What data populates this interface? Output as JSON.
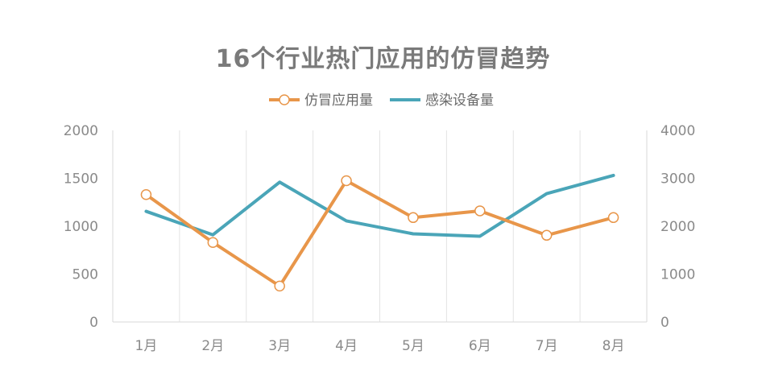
{
  "chart_data": {
    "type": "line",
    "title": "16个行业热门应用的仿冒趋势",
    "categories": [
      "1月",
      "2月",
      "3月",
      "4月",
      "5月",
      "6月",
      "7月",
      "8月"
    ],
    "series": [
      {
        "name": "仿冒应用量",
        "axis": "left",
        "color": "#E8964A",
        "marker": "circle",
        "values": [
          1330,
          830,
          375,
          1475,
          1090,
          1160,
          905,
          1090
        ]
      },
      {
        "name": "感染设备量",
        "axis": "right",
        "color": "#4AA5B8",
        "marker": "none",
        "values": [
          2310,
          1820,
          2920,
          2110,
          1840,
          1790,
          2680,
          3060
        ]
      }
    ],
    "y_left": {
      "ylim": [
        0,
        2000
      ],
      "ticks": [
        0,
        500,
        1000,
        1500,
        2000
      ]
    },
    "y_right": {
      "ylim": [
        0,
        4000
      ],
      "ticks": [
        0,
        1000,
        2000,
        3000,
        4000
      ]
    },
    "grid": "vertical",
    "legend_position": "top-center"
  }
}
